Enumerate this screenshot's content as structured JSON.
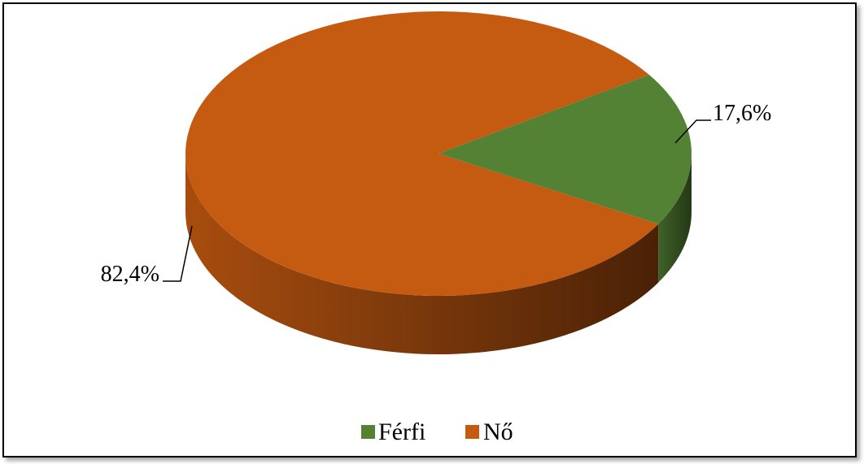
{
  "chart_data": {
    "type": "pie",
    "style": "3d",
    "title": "",
    "series": [
      {
        "categories": [
          "Férfi",
          "Nő"
        ],
        "values": [
          17.6,
          82.4
        ],
        "data_labels": [
          "17,6%",
          "82,4%"
        ],
        "colors": [
          "#548235",
          "#C55A11"
        ]
      }
    ],
    "legend": {
      "position": "bottom",
      "entries": [
        "Férfi",
        "Nő"
      ]
    }
  }
}
